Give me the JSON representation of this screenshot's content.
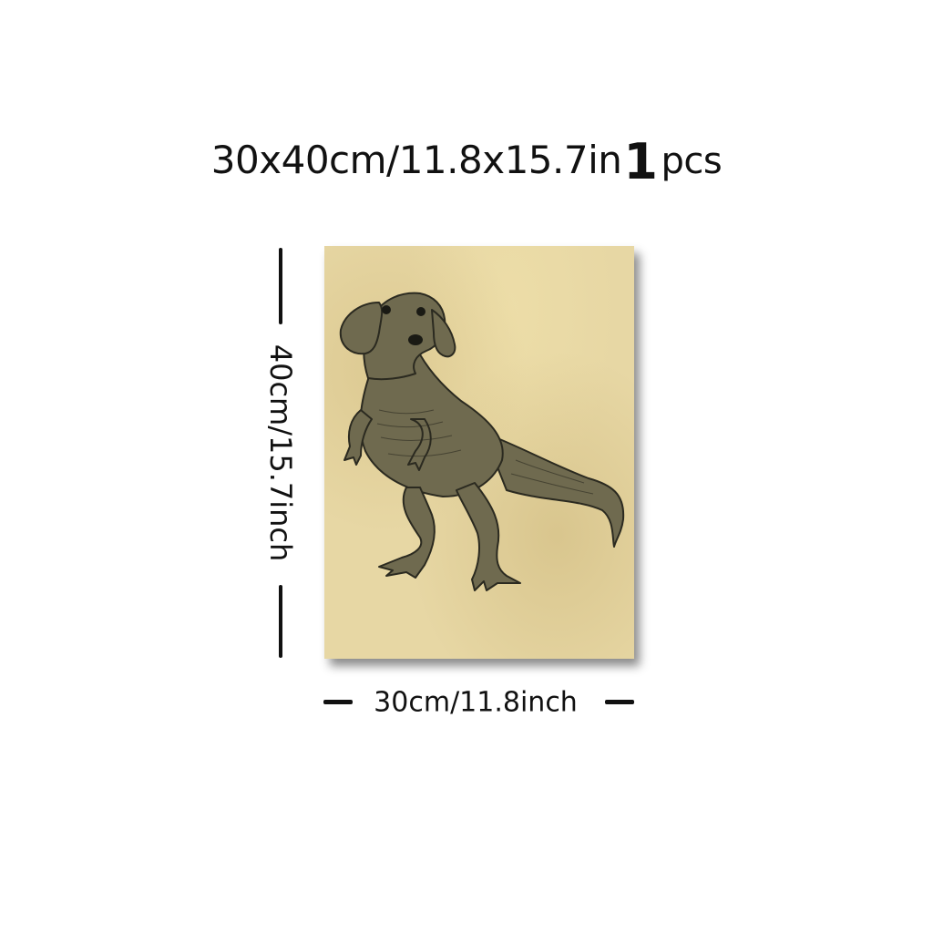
{
  "title": {
    "size_text": "30x40cm/11.8x15.7in",
    "qty_number": "1",
    "qty_unit": "pcs"
  },
  "dimensions": {
    "height_label": "40cm/15.7inch",
    "width_label": "30cm/11.8inch"
  },
  "canvas": {
    "subject": "dachshund-dinosaur-illustration-icon",
    "paper_color": "#e7d7a4",
    "ink_color": "#2b2a20"
  }
}
